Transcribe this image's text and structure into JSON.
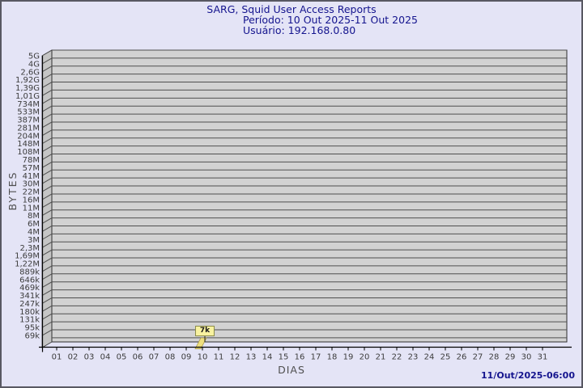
{
  "title": {
    "line1": "SARG, Squid User Access Reports",
    "line2": "Período: 10 Out 2025-11 Out 2025",
    "line3": "Usuário: 192.168.0.80"
  },
  "footer": {
    "timestamp": "11/Out/2025-06:00"
  },
  "chart_data": {
    "type": "bar",
    "title": "SARG, Squid User Access Reports",
    "subtitle_period": "Período: 10 Out 2025-11 Out 2025",
    "subtitle_user": "Usuário: 192.168.0.80",
    "xlabel": "DIAS",
    "ylabel": "BYTES",
    "scale": "logarithmic",
    "grid": true,
    "legend_position": "none",
    "categories": [
      "01",
      "02",
      "03",
      "04",
      "05",
      "06",
      "07",
      "08",
      "09",
      "10",
      "11",
      "12",
      "13",
      "14",
      "15",
      "16",
      "17",
      "18",
      "19",
      "20",
      "21",
      "22",
      "23",
      "24",
      "25",
      "26",
      "27",
      "28",
      "29",
      "30",
      "31"
    ],
    "values": [
      0,
      0,
      0,
      0,
      0,
      0,
      0,
      0,
      0,
      7000,
      0,
      0,
      0,
      0,
      0,
      0,
      0,
      0,
      0,
      0,
      0,
      0,
      0,
      0,
      0,
      0,
      0,
      0,
      0,
      0,
      0
    ],
    "bar_labels": [
      "",
      "",
      "",
      "",
      "",
      "",
      "",
      "",
      "",
      "7k",
      "",
      "",
      "",
      "",
      "",
      "",
      "",
      "",
      "",
      "",
      "",
      "",
      "",
      "",
      "",
      "",
      "",
      "",
      "",
      "",
      ""
    ],
    "highlighted_bar": {
      "day": "10",
      "value_label": "7k",
      "value_bytes": 7000
    },
    "y_tick_labels": [
      "5G",
      "4G",
      "2,6G",
      "1,92G",
      "1,39G",
      "1,01G",
      "734M",
      "533M",
      "387M",
      "281M",
      "204M",
      "148M",
      "108M",
      "78M",
      "57M",
      "41M",
      "30M",
      "22M",
      "16M",
      "11M",
      "8M",
      "6M",
      "4M",
      "3M",
      "2,3M",
      "1,69M",
      "1,22M",
      "889k",
      "646k",
      "469k",
      "341k",
      "247k",
      "180k",
      "131k",
      "95k",
      "69k"
    ],
    "ylim_labels": [
      "69k",
      "5G"
    ],
    "colors": {
      "background": "#E4E4F6",
      "plot_face": "#D2D2D2",
      "plot_wall": "#C5C5C5",
      "gridline": "#4f4f4f",
      "axis": "#000000",
      "title_text": "#14148E",
      "tick_text": "#3c3c3c",
      "bar_fill": "#EFDF7E",
      "bar_stroke": "#A39440",
      "label_box_fill": "#F8F2A0",
      "label_box_border": "#8C8C49"
    }
  }
}
